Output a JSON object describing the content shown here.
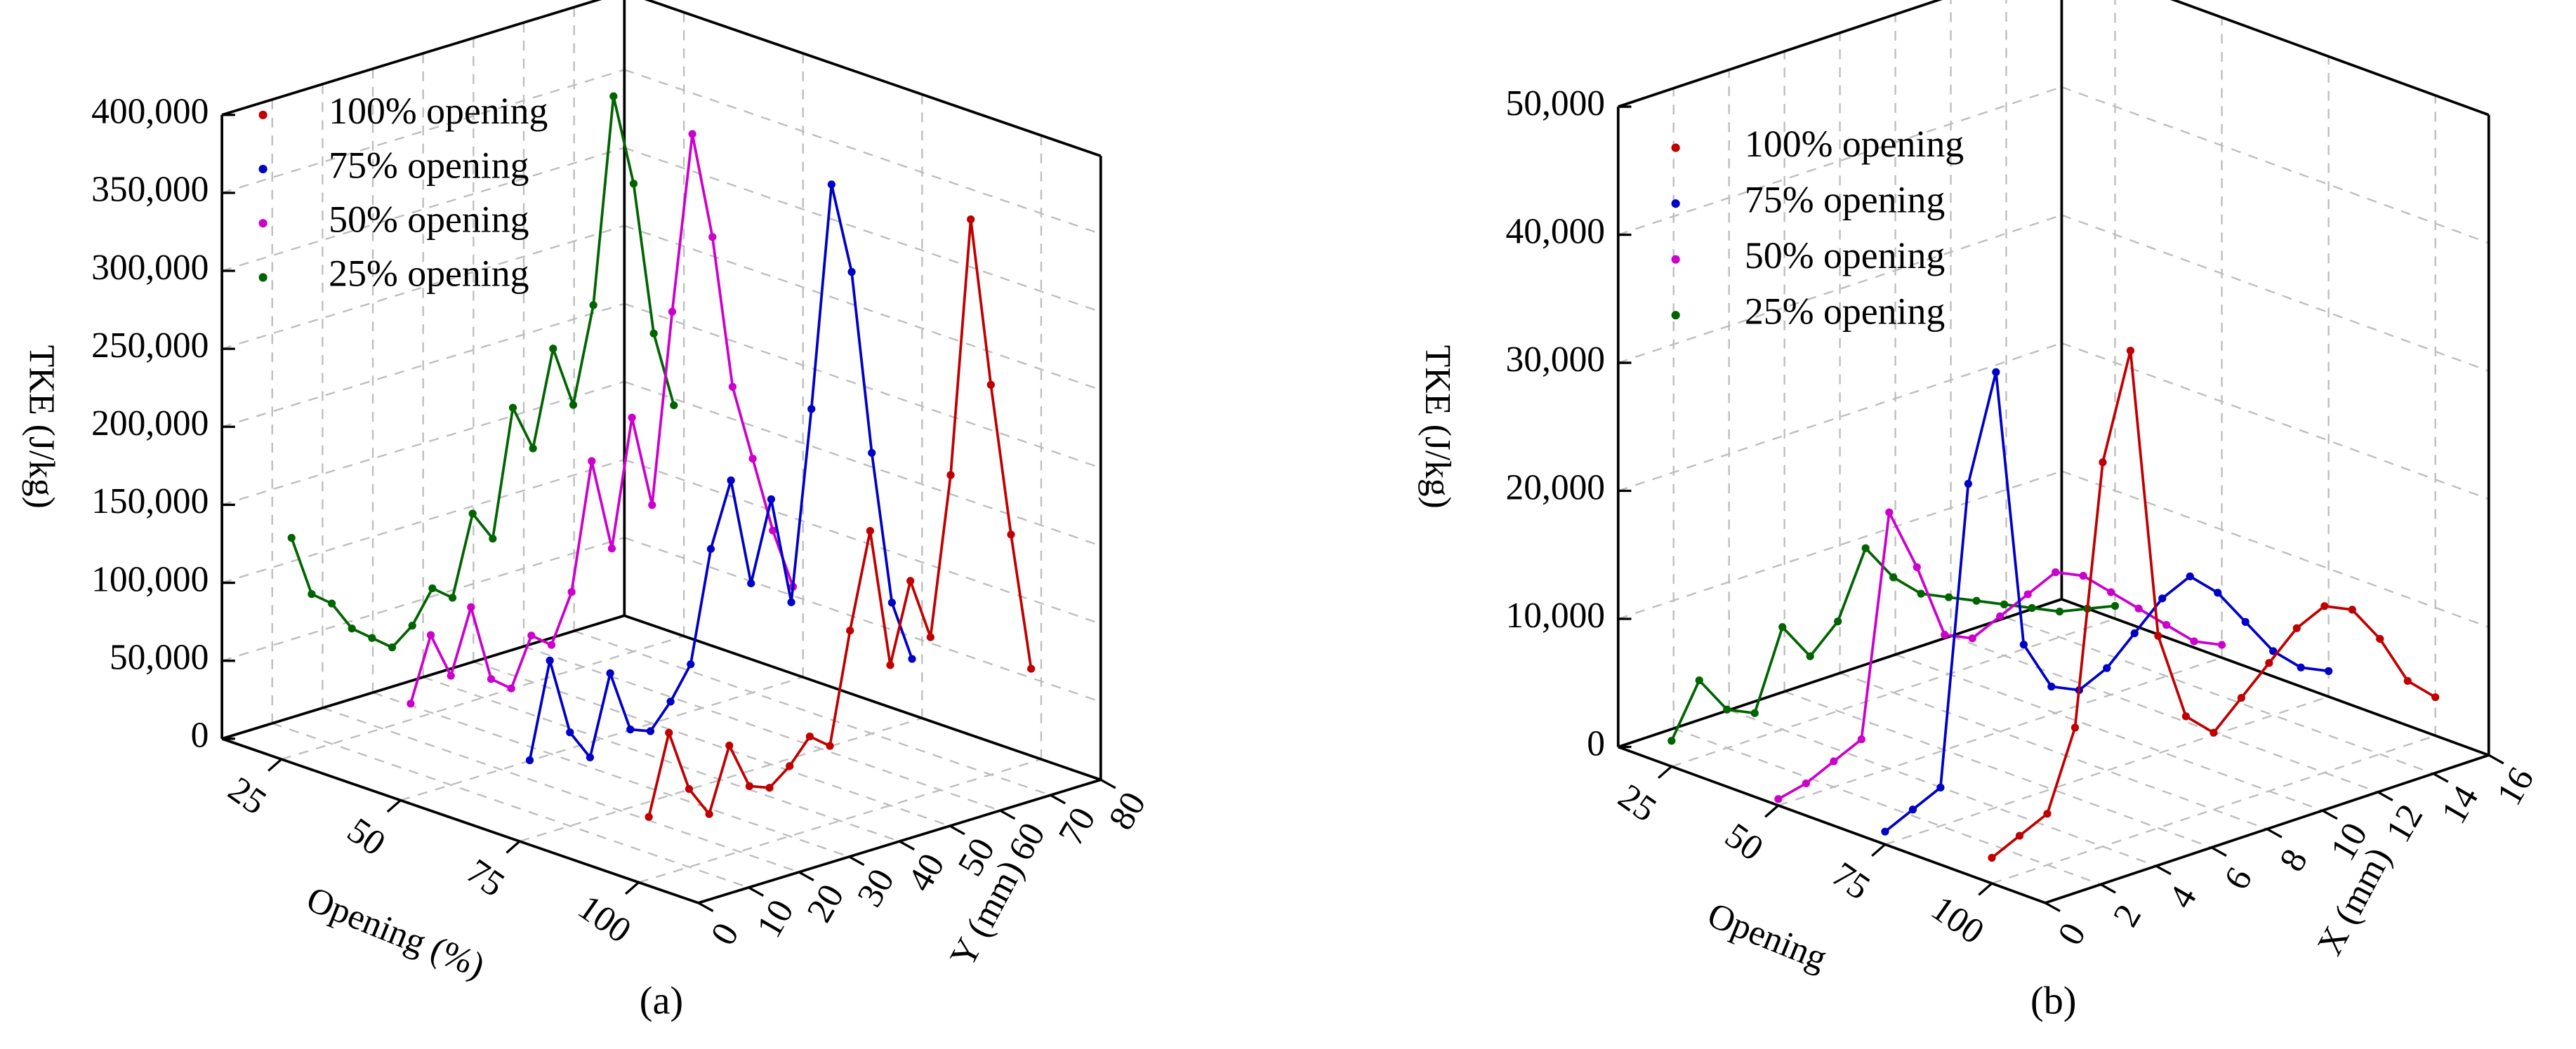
{
  "chart_data": [
    {
      "type": "scatter3d",
      "caption": "(a)",
      "zlabel": "TKE (J/kg)",
      "olabel": "Opening (%)",
      "ylabel": "Y (mm)",
      "zlim": [
        0,
        400000
      ],
      "zticks": [
        0,
        {
          "value": 50000,
          "label": "50,000"
        },
        {
          "value": 100000,
          "label": "100,000"
        },
        {
          "value": 150000,
          "label": "150,000"
        },
        {
          "value": 200000,
          "label": "200,000"
        },
        {
          "value": 250000,
          "label": "250,000"
        },
        {
          "value": 300000,
          "label": "300,000"
        },
        {
          "value": 350000,
          "label": "350,000"
        },
        {
          "value": 400000,
          "label": "400,000"
        }
      ],
      "olim": [
        12.5,
        112.5
      ],
      "oticks": [
        25,
        50,
        75,
        100
      ],
      "ylim": [
        0,
        80
      ],
      "yticks": [
        0,
        10,
        20,
        30,
        40,
        50,
        60,
        70,
        80
      ],
      "grid": true,
      "series": [
        {
          "name": "100% opening",
          "color": "#c00000",
          "opening": 100,
          "y": [
            2,
            6,
            10,
            14,
            18,
            22,
            26,
            30,
            34,
            38,
            42,
            46,
            50,
            54,
            58,
            62,
            66,
            70,
            74,
            78
          ],
          "values": [
            40000,
            90000,
            50000,
            30000,
            70000,
            40000,
            35000,
            45000,
            60000,
            50000,
            120000,
            180000,
            90000,
            140000,
            100000,
            200000,
            360000,
            250000,
            150000,
            60000
          ]
        },
        {
          "name": "75% opening",
          "color": "#0000c8",
          "opening": 75,
          "y": [
            2,
            6,
            10,
            14,
            18,
            22,
            26,
            30,
            34,
            38,
            42,
            46,
            50,
            54,
            58,
            62,
            66,
            70,
            74,
            78
          ],
          "values": [
            50000,
            110000,
            60000,
            40000,
            90000,
            50000,
            45000,
            60000,
            80000,
            150000,
            190000,
            120000,
            170000,
            100000,
            220000,
            360000,
            300000,
            180000,
            80000,
            40000
          ]
        },
        {
          "name": "50% opening",
          "color": "#cc00cc",
          "opening": 50,
          "y": [
            2,
            6,
            10,
            14,
            18,
            22,
            26,
            30,
            34,
            38,
            42,
            46,
            50,
            54,
            58,
            62,
            66,
            70,
            74,
            78
          ],
          "values": [
            60000,
            100000,
            70000,
            110000,
            60000,
            50000,
            80000,
            70000,
            100000,
            180000,
            120000,
            200000,
            140000,
            260000,
            370000,
            300000,
            200000,
            150000,
            100000,
            60000
          ]
        },
        {
          "name": "25% opening",
          "color": "#006400",
          "opening": 25,
          "y": [
            2,
            6,
            10,
            14,
            18,
            22,
            26,
            30,
            34,
            38,
            42,
            46,
            50,
            54,
            58,
            62,
            66,
            70,
            74,
            78
          ],
          "values": [
            140000,
            100000,
            90000,
            70000,
            60000,
            50000,
            60000,
            80000,
            70000,
            120000,
            100000,
            180000,
            150000,
            210000,
            170000,
            230000,
            360000,
            300000,
            200000,
            150000
          ]
        }
      ]
    },
    {
      "type": "scatter3d",
      "caption": "(b)",
      "zlabel": "TKE (J/kg)",
      "olabel": "Opening",
      "xlabel": "X (mm)",
      "zlim": [
        0,
        50000
      ],
      "zticks": [
        0,
        {
          "value": 10000,
          "label": "10,000"
        },
        {
          "value": 20000,
          "label": "20,000"
        },
        {
          "value": 30000,
          "label": "30,000"
        },
        {
          "value": 40000,
          "label": "40,000"
        },
        {
          "value": 50000,
          "label": "50,000"
        }
      ],
      "olim": [
        12.5,
        112.5
      ],
      "oticks": [
        25,
        50,
        75,
        100
      ],
      "xlim": [
        0,
        16
      ],
      "xticks": [
        0,
        2,
        4,
        6,
        8,
        10,
        12,
        14,
        16
      ],
      "grid": true,
      "series": [
        {
          "name": "100% opening",
          "color": "#c00000",
          "opening": 100,
          "x": [
            0,
            1,
            2,
            3,
            4,
            5,
            6,
            7,
            8,
            9,
            10,
            11,
            12,
            13,
            14,
            15,
            16
          ],
          "values": [
            2000,
            3000,
            4000,
            10000,
            30000,
            38000,
            15000,
            8000,
            6000,
            8000,
            10000,
            12000,
            13000,
            12000,
            9000,
            5000,
            3000
          ]
        },
        {
          "name": "75% opening",
          "color": "#0000c8",
          "opening": 75,
          "x": [
            0,
            1,
            2,
            3,
            4,
            5,
            6,
            7,
            8,
            9,
            10,
            11,
            12,
            13,
            14,
            15,
            16
          ],
          "values": [
            1000,
            2000,
            3000,
            26000,
            34000,
            12000,
            8000,
            7000,
            8000,
            10000,
            12000,
            13000,
            11000,
            8000,
            5000,
            3000,
            2000
          ]
        },
        {
          "name": "50% opening",
          "color": "#cc00cc",
          "opening": 50,
          "x": [
            0,
            1,
            2,
            3,
            4,
            5,
            6,
            7,
            8,
            9,
            10,
            11,
            12,
            13,
            14,
            15,
            16
          ],
          "values": [
            500,
            1000,
            2000,
            3000,
            20000,
            15000,
            9000,
            8000,
            9000,
            10000,
            11000,
            10000,
            8000,
            6000,
            4000,
            2000,
            1000
          ]
        },
        {
          "name": "25% opening",
          "color": "#006400",
          "opening": 25,
          "x": [
            0,
            1,
            2,
            3,
            4,
            5,
            6,
            7,
            8,
            9,
            10,
            11,
            12,
            13,
            14,
            15,
            16
          ],
          "values": [
            2000,
            6000,
            3000,
            2000,
            8000,
            5000,
            7000,
            12000,
            9000,
            7000,
            6000,
            5000,
            4000,
            3000,
            2000,
            1500,
            1000
          ]
        }
      ]
    }
  ]
}
